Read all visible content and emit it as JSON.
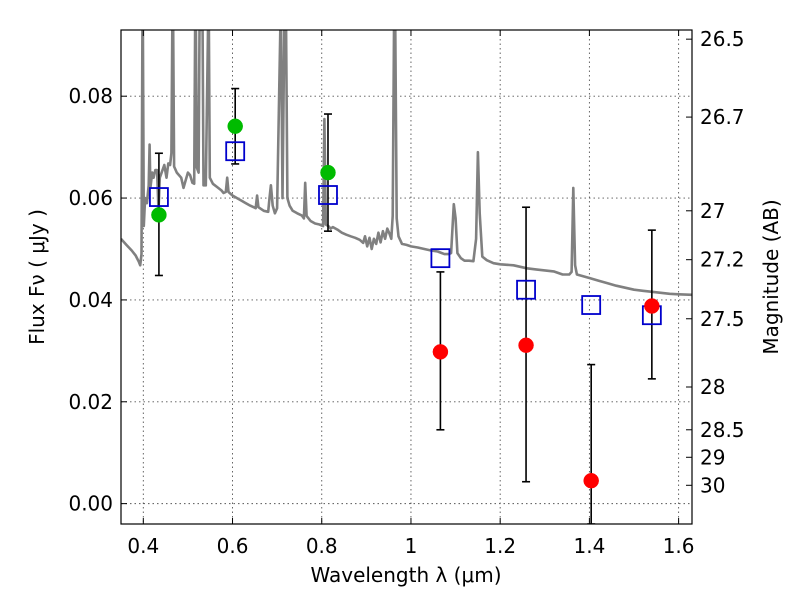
{
  "chart_data": {
    "type": "scatter",
    "xlabel": "Wavelength  λ (μm)",
    "ylabel": "Flux  Fν  ( μJy )",
    "ylabel_right": "Magnitude (AB)",
    "xlim": [
      0.35,
      1.63
    ],
    "ylim": [
      -0.004,
      0.093
    ],
    "grid": true,
    "x_ticks": [
      {
        "value": 0.4,
        "label": "0.4"
      },
      {
        "value": 0.6,
        "label": "0.6"
      },
      {
        "value": 0.8,
        "label": "0.8"
      },
      {
        "value": 1.0,
        "label": "1"
      },
      {
        "value": 1.2,
        "label": "1.2"
      },
      {
        "value": 1.4,
        "label": "1.4"
      },
      {
        "value": 1.6,
        "label": "1.6"
      }
    ],
    "y_ticks": [
      {
        "value": 0.0,
        "label": "0.00"
      },
      {
        "value": 0.02,
        "label": "0.02"
      },
      {
        "value": 0.04,
        "label": "0.04"
      },
      {
        "value": 0.06,
        "label": "0.06"
      },
      {
        "value": 0.08,
        "label": "0.08"
      }
    ],
    "right_ticks": [
      {
        "label": "26.5",
        "flux": 0.0912
      },
      {
        "label": "26.7",
        "flux": 0.0759
      },
      {
        "label": "27",
        "flux": 0.0575
      },
      {
        "label": "27.2",
        "flux": 0.0479
      },
      {
        "label": "27.5",
        "flux": 0.0363
      },
      {
        "label": "28",
        "flux": 0.0229
      },
      {
        "label": "28.5",
        "flux": 0.0145
      },
      {
        "label": "29",
        "flux": 0.0091
      },
      {
        "label": "30",
        "flux": 0.0036
      }
    ],
    "series": [
      {
        "kind": "points_errorbars",
        "marker": "circle",
        "colors": [
          "#00bb00",
          "#00bb00",
          "#00bb00",
          "#ff0000",
          "#ff0000",
          "#ff0000",
          "#ff0000"
        ],
        "points": [
          {
            "x": 0.435,
            "y": 0.0567,
            "err_low": 0.0448,
            "err_high": 0.0688
          },
          {
            "x": 0.606,
            "y": 0.0741,
            "err_low": 0.0667,
            "err_high": 0.0815
          },
          {
            "x": 0.814,
            "y": 0.065,
            "err_low": 0.0535,
            "err_high": 0.0765
          },
          {
            "x": 1.066,
            "y": 0.0298,
            "err_low": 0.0145,
            "err_high": 0.0455
          },
          {
            "x": 1.258,
            "y": 0.0311,
            "err_low": 0.0043,
            "err_high": 0.0582
          },
          {
            "x": 1.404,
            "y": 0.0045,
            "err_low": -0.004,
            "err_high": 0.0273
          },
          {
            "x": 1.54,
            "y": 0.0388,
            "err_low": 0.0245,
            "err_high": 0.0537
          }
        ]
      },
      {
        "kind": "model_photometry",
        "marker": "square",
        "color": "#0000cc",
        "points": [
          {
            "x": 0.435,
            "y": 0.0602
          },
          {
            "x": 0.606,
            "y": 0.0692
          },
          {
            "x": 0.814,
            "y": 0.0606
          },
          {
            "x": 1.066,
            "y": 0.0482
          },
          {
            "x": 1.258,
            "y": 0.042
          },
          {
            "x": 1.404,
            "y": 0.039
          },
          {
            "x": 1.54,
            "y": 0.037
          }
        ]
      },
      {
        "kind": "spectrum",
        "color": "#808080",
        "points": [
          [
            0.35,
            0.052
          ],
          [
            0.362,
            0.0508
          ],
          [
            0.374,
            0.0497
          ],
          [
            0.383,
            0.0487
          ],
          [
            0.39,
            0.0475
          ],
          [
            0.393,
            0.0468
          ],
          [
            0.396,
            0.049
          ],
          [
            0.398,
            0.093
          ],
          [
            0.399,
            0.093
          ],
          [
            0.401,
            0.0545
          ],
          [
            0.404,
            0.06
          ],
          [
            0.408,
            0.059
          ],
          [
            0.412,
            0.0625
          ],
          [
            0.414,
            0.0705
          ],
          [
            0.416,
            0.062
          ],
          [
            0.42,
            0.065
          ],
          [
            0.423,
            0.064
          ],
          [
            0.427,
            0.0655
          ],
          [
            0.431,
            0.0655
          ],
          [
            0.434,
            0.0575
          ],
          [
            0.437,
            0.064
          ],
          [
            0.442,
            0.0652
          ],
          [
            0.447,
            0.0665
          ],
          [
            0.452,
            0.064
          ],
          [
            0.456,
            0.0668
          ],
          [
            0.46,
            0.0665
          ],
          [
            0.463,
            0.0688
          ],
          [
            0.465,
            0.093
          ],
          [
            0.467,
            0.093
          ],
          [
            0.469,
            0.0662
          ],
          [
            0.475,
            0.065
          ],
          [
            0.485,
            0.064
          ],
          [
            0.49,
            0.062
          ],
          [
            0.495,
            0.0635
          ],
          [
            0.5,
            0.065
          ],
          [
            0.505,
            0.0645
          ],
          [
            0.51,
            0.063
          ],
          [
            0.514,
            0.0628
          ],
          [
            0.516,
            0.093
          ],
          [
            0.518,
            0.093
          ],
          [
            0.52,
            0.066
          ],
          [
            0.524,
            0.065
          ],
          [
            0.526,
            0.093
          ],
          [
            0.533,
            0.093
          ],
          [
            0.535,
            0.0625
          ],
          [
            0.54,
            0.0625
          ],
          [
            0.545,
            0.093
          ],
          [
            0.547,
            0.093
          ],
          [
            0.549,
            0.064
          ],
          [
            0.556,
            0.0628
          ],
          [
            0.565,
            0.0622
          ],
          [
            0.575,
            0.0615
          ],
          [
            0.58,
            0.061
          ],
          [
            0.585,
            0.0612
          ],
          [
            0.588,
            0.064
          ],
          [
            0.591,
            0.0612
          ],
          [
            0.6,
            0.0605
          ],
          [
            0.61,
            0.06
          ],
          [
            0.62,
            0.0595
          ],
          [
            0.63,
            0.059
          ],
          [
            0.64,
            0.0585
          ],
          [
            0.652,
            0.058
          ],
          [
            0.655,
            0.0605
          ],
          [
            0.658,
            0.0582
          ],
          [
            0.67,
            0.0575
          ],
          [
            0.68,
            0.0573
          ],
          [
            0.683,
            0.06
          ],
          [
            0.686,
            0.0625
          ],
          [
            0.69,
            0.0585
          ],
          [
            0.695,
            0.057
          ],
          [
            0.7,
            0.058
          ],
          [
            0.707,
            0.093
          ],
          [
            0.709,
            0.093
          ],
          [
            0.712,
            0.06
          ],
          [
            0.716,
            0.093
          ],
          [
            0.718,
            0.093
          ],
          [
            0.72,
            0.093
          ],
          [
            0.723,
            0.06
          ],
          [
            0.728,
            0.0585
          ],
          [
            0.735,
            0.0575
          ],
          [
            0.745,
            0.057
          ],
          [
            0.755,
            0.0566
          ],
          [
            0.76,
            0.056
          ],
          [
            0.763,
            0.063
          ],
          [
            0.766,
            0.0565
          ],
          [
            0.775,
            0.0555
          ],
          [
            0.785,
            0.055
          ],
          [
            0.795,
            0.0548
          ],
          [
            0.803,
            0.0545
          ],
          [
            0.806,
            0.0755
          ],
          [
            0.809,
            0.0548
          ],
          [
            0.815,
            0.0545
          ],
          [
            0.82,
            0.054
          ],
          [
            0.825,
            0.0543
          ],
          [
            0.835,
            0.0538
          ],
          [
            0.845,
            0.0532
          ],
          [
            0.855,
            0.0528
          ],
          [
            0.865,
            0.0525
          ],
          [
            0.875,
            0.0522
          ],
          [
            0.885,
            0.0518
          ],
          [
            0.893,
            0.0512
          ],
          [
            0.897,
            0.0525
          ],
          [
            0.902,
            0.0505
          ],
          [
            0.907,
            0.0522
          ],
          [
            0.912,
            0.05
          ],
          [
            0.917,
            0.052
          ],
          [
            0.922,
            0.051
          ],
          [
            0.927,
            0.0532
          ],
          [
            0.932,
            0.0513
          ],
          [
            0.937,
            0.0535
          ],
          [
            0.942,
            0.052
          ],
          [
            0.947,
            0.054
          ],
          [
            0.952,
            0.053
          ],
          [
            0.956,
            0.052
          ],
          [
            0.959,
            0.0565
          ],
          [
            0.962,
            0.093
          ],
          [
            0.965,
            0.093
          ],
          [
            0.968,
            0.056
          ],
          [
            0.972,
            0.0525
          ],
          [
            0.98,
            0.051
          ],
          [
            0.99,
            0.0508
          ],
          [
            1.0,
            0.0505
          ],
          [
            1.015,
            0.0503
          ],
          [
            1.03,
            0.05
          ],
          [
            1.045,
            0.0497
          ],
          [
            1.06,
            0.0495
          ],
          [
            1.075,
            0.049
          ],
          [
            1.085,
            0.049
          ],
          [
            1.09,
            0.0492
          ],
          [
            1.096,
            0.0588
          ],
          [
            1.1,
            0.056
          ],
          [
            1.104,
            0.0492
          ],
          [
            1.112,
            0.0482
          ],
          [
            1.12,
            0.0477
          ],
          [
            1.13,
            0.0477
          ],
          [
            1.14,
            0.0476
          ],
          [
            1.146,
            0.052
          ],
          [
            1.15,
            0.069
          ],
          [
            1.154,
            0.057
          ],
          [
            1.16,
            0.0485
          ],
          [
            1.17,
            0.0478
          ],
          [
            1.185,
            0.0472
          ],
          [
            1.2,
            0.047
          ],
          [
            1.215,
            0.0469
          ],
          [
            1.23,
            0.0468
          ],
          [
            1.245,
            0.0465
          ],
          [
            1.26,
            0.0462
          ],
          [
            1.28,
            0.046
          ],
          [
            1.3,
            0.0458
          ],
          [
            1.32,
            0.0456
          ],
          [
            1.34,
            0.045
          ],
          [
            1.355,
            0.045
          ],
          [
            1.36,
            0.0455
          ],
          [
            1.364,
            0.062
          ],
          [
            1.368,
            0.0468
          ],
          [
            1.372,
            0.045
          ],
          [
            1.38,
            0.0448
          ],
          [
            1.4,
            0.0443
          ],
          [
            1.42,
            0.0438
          ],
          [
            1.44,
            0.0433
          ],
          [
            1.46,
            0.0428
          ],
          [
            1.48,
            0.0424
          ],
          [
            1.5,
            0.042
          ],
          [
            1.52,
            0.0418
          ],
          [
            1.54,
            0.0416
          ],
          [
            1.56,
            0.0414
          ],
          [
            1.58,
            0.0412
          ],
          [
            1.6,
            0.0411
          ],
          [
            1.63,
            0.041
          ]
        ]
      }
    ]
  }
}
